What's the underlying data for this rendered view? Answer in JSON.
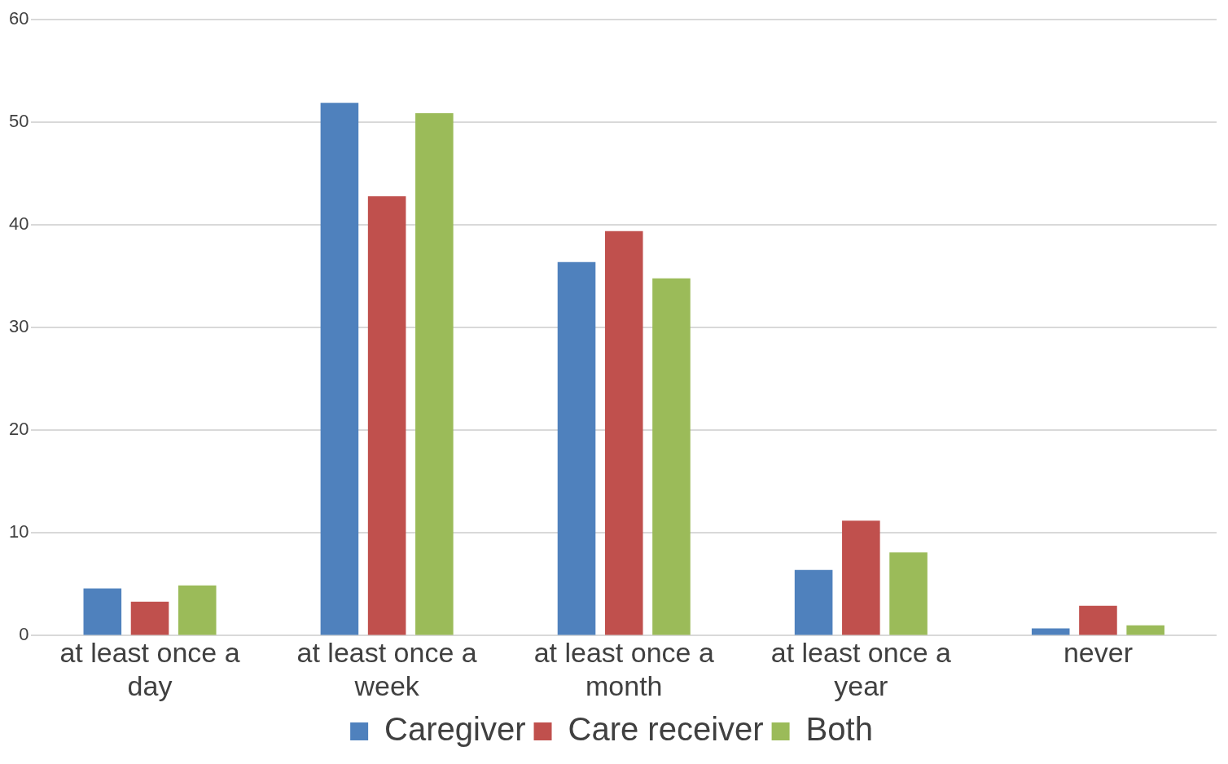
{
  "chart_data": {
    "type": "bar",
    "categories": [
      "at least once a day",
      "at least once a week",
      "at least once a month",
      "at least once a year",
      "never"
    ],
    "series": [
      {
        "name": "Caregiver",
        "color": "#4f81bd",
        "values": [
          4.6,
          51.9,
          36.4,
          6.4,
          0.7
        ]
      },
      {
        "name": "Care receiver",
        "color": "#c0504d",
        "values": [
          3.3,
          42.8,
          39.4,
          11.2,
          2.9
        ]
      },
      {
        "name": "Both",
        "color": "#9bbb59",
        "values": [
          4.9,
          50.9,
          34.8,
          8.1,
          1.0
        ]
      }
    ],
    "ylim": [
      0,
      60
    ],
    "yticks": [
      0,
      10,
      20,
      30,
      40,
      50,
      60
    ],
    "grid": "y",
    "legend": "bottom"
  }
}
